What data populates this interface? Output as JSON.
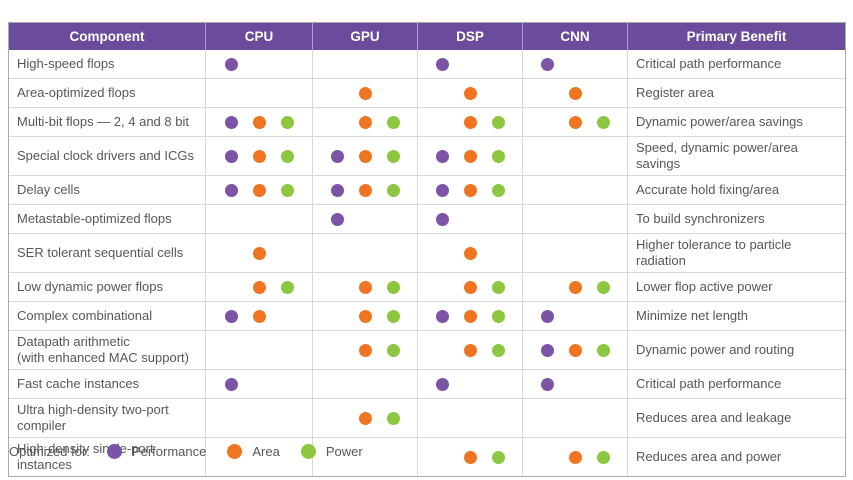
{
  "colors": {
    "header_bg": "#6b4b9b",
    "performance": "#7d53a6",
    "area": "#ef7523",
    "power": "#8dc63f",
    "border": "#d9d9d9",
    "outer_border": "#aaaaaa",
    "text": "#575757",
    "header_text": "#ffffff"
  },
  "chart_data": {
    "type": "table",
    "columns": [
      "Component",
      "CPU",
      "GPU",
      "DSP",
      "CNN",
      "Primary Benefit"
    ],
    "marker_keys": [
      "performance",
      "area",
      "power"
    ],
    "rows": [
      {
        "component": "High-speed flops",
        "cpu": [
          "performance"
        ],
        "gpu": [],
        "dsp": [
          "performance"
        ],
        "cnn": [
          "performance"
        ],
        "benefit": "Critical path performance"
      },
      {
        "component": "Area-optimized flops",
        "cpu": [],
        "gpu": [
          "area"
        ],
        "dsp": [
          "area"
        ],
        "cnn": [
          "area"
        ],
        "benefit": "Register area"
      },
      {
        "component": "Multi-bit flops — 2, 4 and 8 bit",
        "cpu": [
          "performance",
          "area",
          "power"
        ],
        "gpu": [
          "area",
          "power"
        ],
        "dsp": [
          "area",
          "power"
        ],
        "cnn": [
          "area",
          "power"
        ],
        "benefit": "Dynamic power/area savings"
      },
      {
        "component": "Special clock drivers and ICGs",
        "cpu": [
          "performance",
          "area",
          "power"
        ],
        "gpu": [
          "performance",
          "area",
          "power"
        ],
        "dsp": [
          "performance",
          "area",
          "power"
        ],
        "cnn": [],
        "benefit": "Speed, dynamic power/area savings"
      },
      {
        "component": "Delay cells",
        "cpu": [
          "performance",
          "area",
          "power"
        ],
        "gpu": [
          "performance",
          "area",
          "power"
        ],
        "dsp": [
          "performance",
          "area",
          "power"
        ],
        "cnn": [],
        "benefit": "Accurate hold fixing/area"
      },
      {
        "component": "Metastable-optimized flops",
        "cpu": [],
        "gpu": [
          "performance"
        ],
        "dsp": [
          "performance"
        ],
        "cnn": [],
        "benefit": "To build synchronizers"
      },
      {
        "component": "SER tolerant sequential cells",
        "cpu": [
          "area"
        ],
        "gpu": [],
        "dsp": [
          "area"
        ],
        "cnn": [],
        "benefit": "Higher tolerance to particle radiation"
      },
      {
        "component": "Low dynamic power flops",
        "cpu": [
          "area",
          "power"
        ],
        "gpu": [
          "area",
          "power"
        ],
        "dsp": [
          "area",
          "power"
        ],
        "cnn": [
          "area",
          "power"
        ],
        "benefit": "Lower flop active power"
      },
      {
        "component": "Complex combinational",
        "cpu": [
          "performance",
          "area"
        ],
        "gpu": [
          "area",
          "power"
        ],
        "dsp": [
          "performance",
          "area",
          "power"
        ],
        "cnn": [
          "performance"
        ],
        "benefit": "Minimize net length"
      },
      {
        "component": "Datapath arithmetic\n(with enhanced MAC support)",
        "cpu": [],
        "gpu": [
          "area",
          "power"
        ],
        "dsp": [
          "area",
          "power"
        ],
        "cnn": [
          "performance",
          "area",
          "power"
        ],
        "benefit": "Dynamic power and routing"
      },
      {
        "component": "Fast cache instances",
        "cpu": [
          "performance"
        ],
        "gpu": [],
        "dsp": [
          "performance"
        ],
        "cnn": [
          "performance"
        ],
        "benefit": "Critical path performance"
      },
      {
        "component": "Ultra high-density two-port compiler",
        "cpu": [],
        "gpu": [
          "area",
          "power"
        ],
        "dsp": [],
        "cnn": [],
        "benefit": "Reduces area and leakage"
      },
      {
        "component": "High-density single-port instances",
        "cpu": [],
        "gpu": [],
        "dsp": [
          "area",
          "power"
        ],
        "cnn": [
          "area",
          "power"
        ],
        "benefit": "Reduces area and power"
      }
    ]
  },
  "legend": {
    "label": "Optimized for:",
    "items": [
      {
        "key": "performance",
        "label": "Performance"
      },
      {
        "key": "area",
        "label": "Area"
      },
      {
        "key": "power",
        "label": "Power"
      }
    ]
  }
}
